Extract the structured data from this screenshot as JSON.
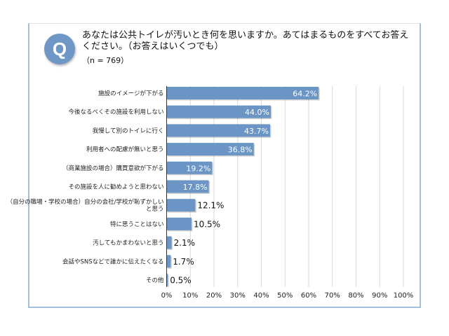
{
  "question": {
    "badge": "Q",
    "text": "あなたは公共トイレが汚いとき何を思いますか。あてはまるものをすべてお答えください。（お答えはいくつでも）",
    "sample": "（n = 769）"
  },
  "colors": {
    "bar": "#6a95c5",
    "frame": "#a4bedd",
    "grid": "#d9d9d9"
  },
  "chart_data": {
    "type": "bar",
    "orientation": "horizontal",
    "categories": [
      [
        "施設のイメージが下がる"
      ],
      [
        "今後なるべくその施設を利用しない"
      ],
      [
        "我慢して別のトイレに行く"
      ],
      [
        "利用者への配慮が無いと思う"
      ],
      [
        "（商業施設の場合）購買意欲が下がる"
      ],
      [
        "その施設を人に勧めようと思わない"
      ],
      [
        "（自分の職場・学校の場合）自分の会社/学校が恥ずかしい",
        "と思う"
      ],
      [
        "特に思うことはない"
      ],
      [
        "汚してもかまわないと思う"
      ],
      [
        "会話やSNSなどで誰かに伝えたくなる"
      ],
      [
        "その他"
      ]
    ],
    "values": [
      64.2,
      44.0,
      43.7,
      36.8,
      19.2,
      17.8,
      12.1,
      10.5,
      2.1,
      1.7,
      0.5
    ],
    "data_labels": [
      "64.2%",
      "44.0%",
      "43.7%",
      "36.8%",
      "19.2%",
      "17.8%",
      "12.1%",
      "10.5%",
      "2.1%",
      "1.7%",
      "0.5%"
    ],
    "xlim": [
      0,
      100
    ],
    "xticks": [
      "0%",
      "10%",
      "20%",
      "30%",
      "40%",
      "50%",
      "60%",
      "70%",
      "80%",
      "90%",
      "100%"
    ],
    "grid": true,
    "legend": "none",
    "title": "",
    "xlabel": "",
    "ylabel": ""
  }
}
